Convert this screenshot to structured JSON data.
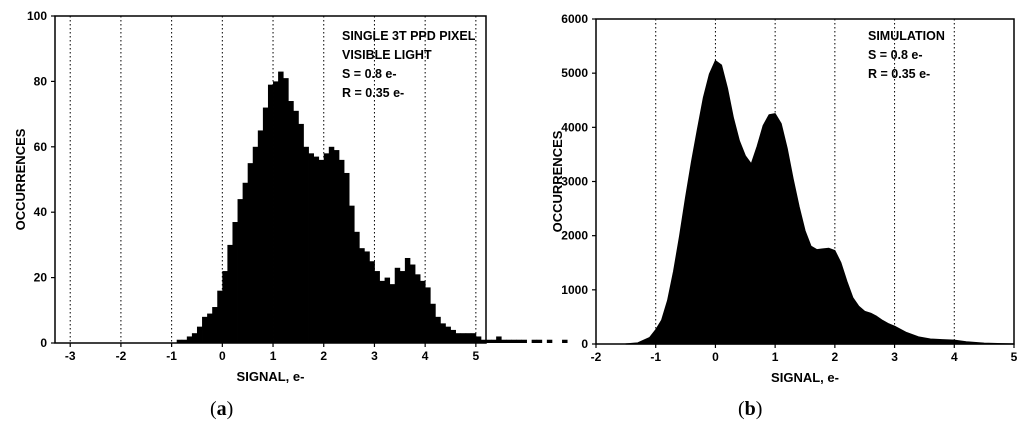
{
  "chart_data": [
    {
      "type": "bar",
      "panel_label": {
        "open": "(",
        "letter": "a",
        "close": ")"
      },
      "xlabel": "SIGNAL, e-",
      "ylabel": "OCCURRENCES",
      "xlim": [
        -3.3,
        5.2
      ],
      "ylim": [
        0,
        100
      ],
      "xticks": [
        -3,
        -2,
        -1,
        0,
        1,
        2,
        3,
        4,
        5
      ],
      "yticks": [
        0,
        20,
        40,
        60,
        80,
        100
      ],
      "grid": "vertical dotted lines at integer signal values",
      "annotations": [
        "SINGLE 3T PPD PIXEL",
        "VISIBLE LIGHT",
        "S = 0.8 e-",
        "R = 0.35 e-"
      ],
      "bin_width": 0.1,
      "bins_start": -3.3,
      "values": [
        0,
        0,
        0,
        0,
        0,
        0,
        0,
        0,
        0,
        0,
        0,
        0,
        0,
        0,
        0,
        0,
        0,
        0,
        0,
        0,
        0,
        0,
        0,
        0,
        1,
        1,
        2,
        3,
        5,
        8,
        9,
        11,
        16,
        22,
        30,
        37,
        44,
        49,
        55,
        60,
        65,
        72,
        79,
        80,
        83,
        81,
        74,
        71,
        67,
        60,
        58,
        57,
        56,
        58,
        60,
        59,
        56,
        52,
        42,
        34,
        29,
        28,
        25,
        22,
        19,
        20,
        18,
        23,
        22,
        26,
        24,
        21,
        19,
        17,
        12,
        8,
        6,
        5,
        4,
        3,
        3,
        3,
        3,
        2,
        1,
        1,
        1,
        2,
        1,
        1,
        1,
        1,
        1,
        0,
        1,
        1,
        0,
        1,
        0,
        0,
        1,
        0,
        0,
        0,
        0,
        0
      ]
    },
    {
      "type": "area",
      "panel_label": {
        "open": "(",
        "letter": "b",
        "close": ")"
      },
      "xlabel": "SIGNAL, e-",
      "ylabel": "OCCURRENCES",
      "xlim": [
        -2,
        5
      ],
      "ylim": [
        0,
        6000
      ],
      "xticks": [
        -2,
        -1,
        0,
        1,
        2,
        3,
        4,
        5
      ],
      "yticks": [
        0,
        1000,
        2000,
        3000,
        4000,
        5000,
        6000
      ],
      "grid": "vertical dotted lines at integer signal values",
      "annotations": [
        "SIMULATION",
        "S = 0.8 e-",
        "R = 0.35 e-"
      ],
      "x": [
        -1.5,
        -1.3,
        -1.1,
        -1.0,
        -0.9,
        -0.8,
        -0.7,
        -0.6,
        -0.5,
        -0.4,
        -0.3,
        -0.2,
        -0.1,
        0.0,
        0.1,
        0.2,
        0.3,
        0.4,
        0.5,
        0.6,
        0.7,
        0.8,
        0.9,
        1.0,
        1.1,
        1.2,
        1.3,
        1.4,
        1.5,
        1.6,
        1.7,
        1.8,
        1.9,
        2.0,
        2.1,
        2.2,
        2.3,
        2.4,
        2.5,
        2.6,
        2.7,
        2.8,
        2.9,
        3.0,
        3.2,
        3.4,
        3.6,
        3.8,
        4.0,
        4.2,
        4.5,
        4.8,
        5.0
      ],
      "values": [
        0,
        20,
        120,
        260,
        480,
        850,
        1350,
        1950,
        2650,
        3350,
        4000,
        4600,
        5000,
        5200,
        5100,
        4700,
        4200,
        3800,
        3500,
        3300,
        3600,
        4000,
        4250,
        4300,
        4100,
        3600,
        3000,
        2500,
        2100,
        1850,
        1780,
        1750,
        1720,
        1680,
        1500,
        1200,
        900,
        700,
        560,
        520,
        500,
        470,
        420,
        340,
        210,
        130,
        90,
        80,
        70,
        40,
        15,
        5,
        0
      ]
    }
  ]
}
